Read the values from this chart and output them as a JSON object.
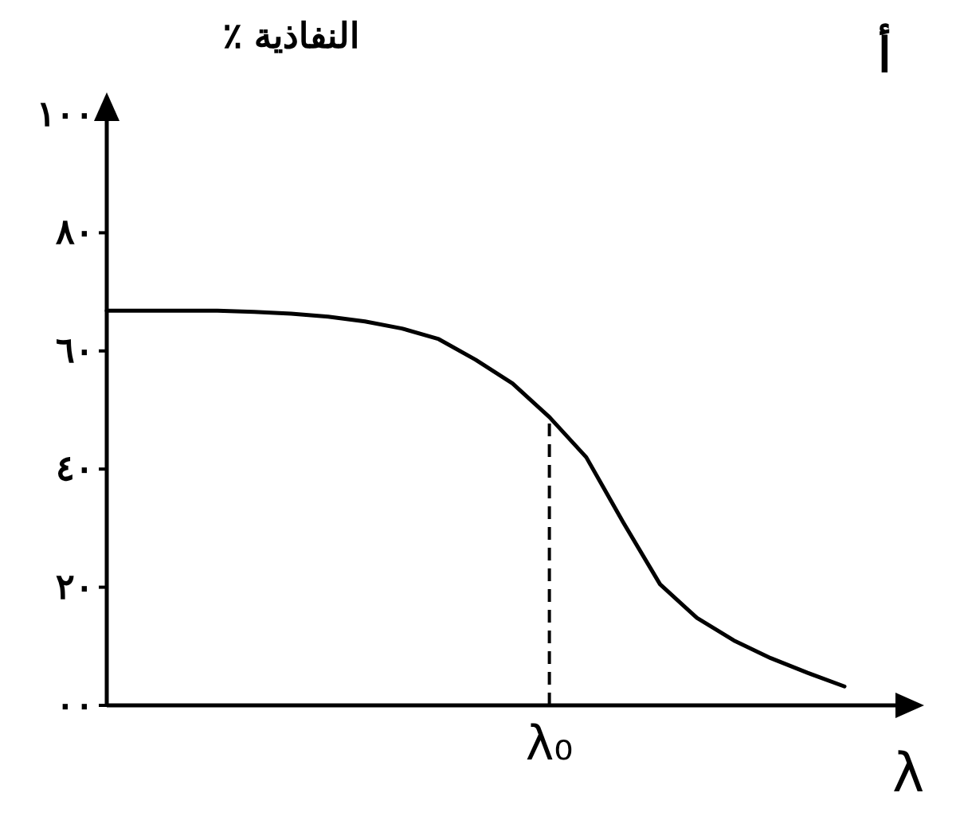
{
  "chart_data": {
    "type": "line",
    "ylabel": "النفاذية ٪",
    "xlabel": "λ",
    "annotations": [
      "أ"
    ],
    "categories": [
      null,
      null,
      null,
      null,
      null,
      null,
      null,
      null,
      null,
      null,
      null,
      null,
      "λ₀",
      null,
      null,
      null,
      null,
      null,
      null,
      null,
      null
    ],
    "series": [
      {
        "color": "#000000",
        "values": [
          66.8,
          66.8,
          66.8,
          66.8,
          66.6,
          66.3,
          65.8,
          65.0,
          63.8,
          62.0,
          58.5,
          54.5,
          48.8,
          42,
          31,
          20.5,
          14.8,
          11,
          8,
          5.5,
          3.2
        ]
      }
    ],
    "ylim": [
      0,
      100
    ],
    "yticks": [
      {
        "value": 0,
        "label": "٠٠"
      },
      {
        "value": 20,
        "label": "٢٠"
      },
      {
        "value": 40,
        "label": "٤٠"
      },
      {
        "value": 60,
        "label": "٦٠"
      },
      {
        "value": 80,
        "label": "٨٠"
      },
      {
        "value": 100,
        "label": "١٠٠"
      }
    ],
    "ref_lines": [
      {
        "axis": "x",
        "value": "λ₀",
        "line_style": "dashed",
        "color": "#000000"
      }
    ],
    "marker": "none",
    "line_style": "solid",
    "grid": false
  }
}
